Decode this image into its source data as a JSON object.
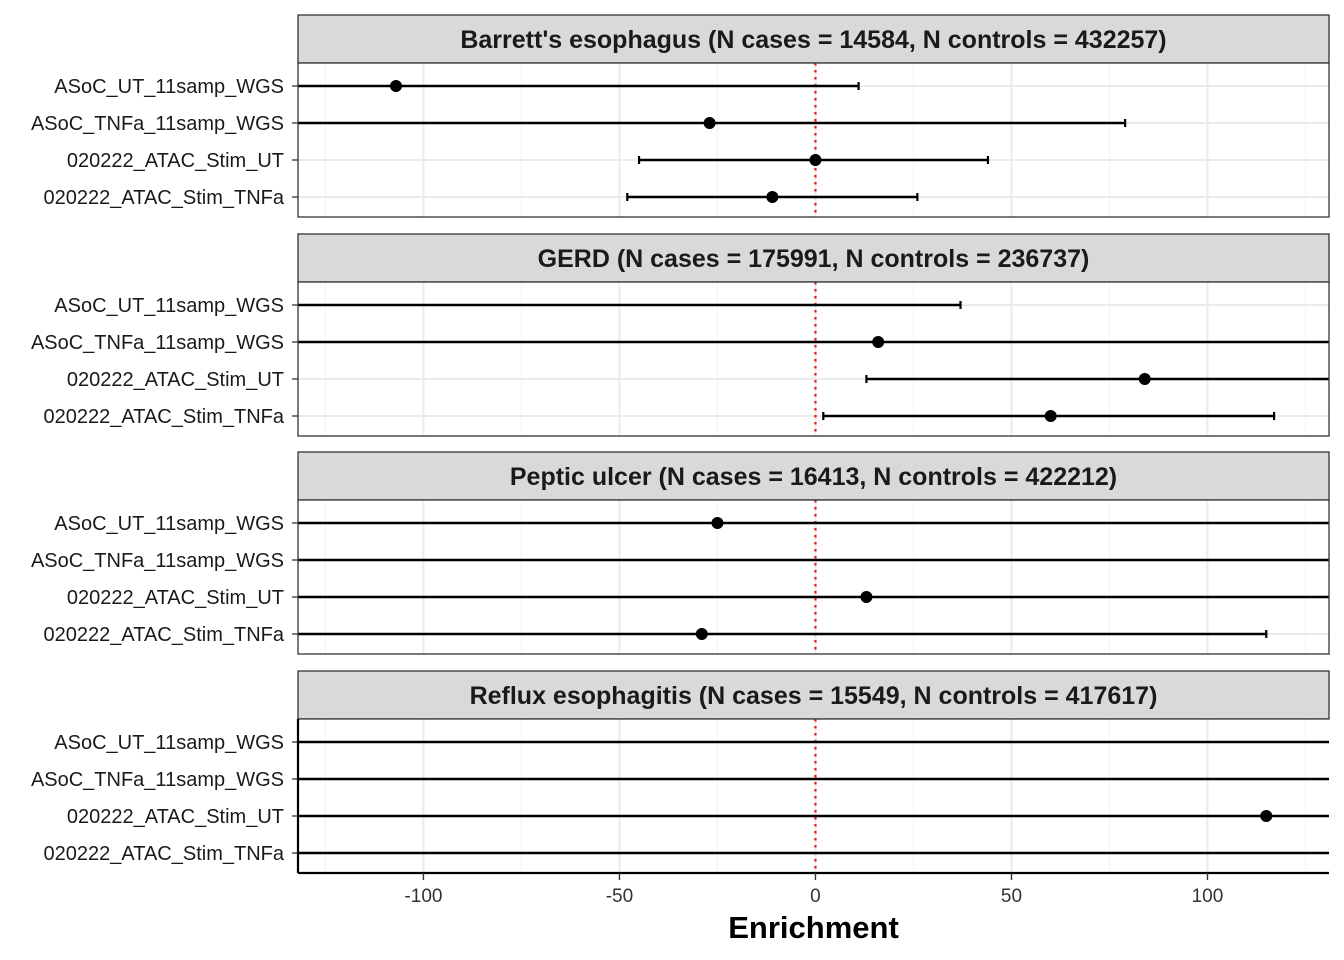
{
  "chart_data": {
    "type": "forest",
    "xlabel": "Enrichment",
    "xlim": [
      -132,
      131
    ],
    "xticks": [
      -100,
      -50,
      0,
      50,
      100
    ],
    "xtick_labels": [
      "-100",
      "-50",
      "0",
      "50",
      "100"
    ],
    "reference_line": {
      "x": 0,
      "color": "#e41a1c",
      "style": "dotted"
    },
    "grid": true,
    "colors": {
      "point": "#000000",
      "strip_fill": "#d9d9d9",
      "grid": "#ebebeb"
    },
    "rows": [
      "ASoC_UT_11samp_WGS",
      "ASoC_TNFa_11samp_WGS",
      "020222_ATAC_Stim_UT",
      "020222_ATAC_Stim_TNFa"
    ],
    "panels": [
      {
        "title": "Barrett's esophagus (N cases = 14584, N controls = 432257)",
        "points": [
          {
            "label": "ASoC_UT_11samp_WGS",
            "estimate": -107,
            "lower": -132,
            "upper": 11,
            "lower_cap": false,
            "upper_cap": true
          },
          {
            "label": "ASoC_TNFa_11samp_WGS",
            "estimate": -27,
            "lower": -132,
            "upper": 79,
            "lower_cap": false,
            "upper_cap": true
          },
          {
            "label": "020222_ATAC_Stim_UT",
            "estimate": 0,
            "lower": -45,
            "upper": 44,
            "lower_cap": true,
            "upper_cap": true
          },
          {
            "label": "020222_ATAC_Stim_TNFa",
            "estimate": -11,
            "lower": -48,
            "upper": 26,
            "lower_cap": true,
            "upper_cap": true
          }
        ]
      },
      {
        "title": "GERD (N cases = 175991, N controls = 236737)",
        "points": [
          {
            "label": "ASoC_UT_11samp_WGS",
            "estimate": null,
            "lower": -132,
            "upper": 37,
            "lower_cap": false,
            "upper_cap": true
          },
          {
            "label": "ASoC_TNFa_11samp_WGS",
            "estimate": 16,
            "lower": -132,
            "upper": 131,
            "lower_cap": false,
            "upper_cap": false
          },
          {
            "label": "020222_ATAC_Stim_UT",
            "estimate": 84,
            "lower": 13,
            "upper": 131,
            "lower_cap": true,
            "upper_cap": false
          },
          {
            "label": "020222_ATAC_Stim_TNFa",
            "estimate": 60,
            "lower": 2,
            "upper": 117,
            "lower_cap": true,
            "upper_cap": true
          }
        ]
      },
      {
        "title": "Peptic ulcer (N cases = 16413, N controls = 422212)",
        "points": [
          {
            "label": "ASoC_UT_11samp_WGS",
            "estimate": -25,
            "lower": -132,
            "upper": 131,
            "lower_cap": false,
            "upper_cap": false
          },
          {
            "label": "ASoC_TNFa_11samp_WGS",
            "estimate": null,
            "lower": -132,
            "upper": 131,
            "lower_cap": false,
            "upper_cap": false
          },
          {
            "label": "020222_ATAC_Stim_UT",
            "estimate": 13,
            "lower": -132,
            "upper": 131,
            "lower_cap": false,
            "upper_cap": false
          },
          {
            "label": "020222_ATAC_Stim_TNFa",
            "estimate": -29,
            "lower": -132,
            "upper": 115,
            "lower_cap": false,
            "upper_cap": true
          }
        ]
      },
      {
        "title": "Reflux esophagitis (N cases = 15549, N controls = 417617)",
        "points": [
          {
            "label": "ASoC_UT_11samp_WGS",
            "estimate": null,
            "lower": -132,
            "upper": 131,
            "lower_cap": false,
            "upper_cap": false
          },
          {
            "label": "ASoC_TNFa_11samp_WGS",
            "estimate": null,
            "lower": -132,
            "upper": 131,
            "lower_cap": false,
            "upper_cap": false
          },
          {
            "label": "020222_ATAC_Stim_UT",
            "estimate": 115,
            "lower": -132,
            "upper": 131,
            "lower_cap": false,
            "upper_cap": false
          },
          {
            "label": "020222_ATAC_Stim_TNFa",
            "estimate": null,
            "lower": -132,
            "upper": 131,
            "lower_cap": false,
            "upper_cap": false
          }
        ]
      }
    ]
  }
}
